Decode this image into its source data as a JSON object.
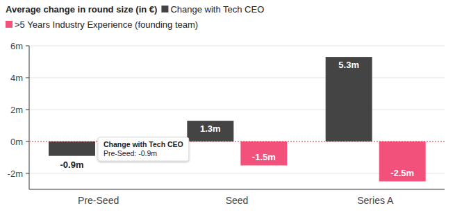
{
  "chart_data": {
    "type": "bar",
    "title": "Average change in round size (in €)",
    "categories": [
      "Pre-Seed",
      "Seed",
      "Series A"
    ],
    "series": [
      {
        "name": "Change with Tech CEO",
        "color": "#444444",
        "values": [
          -0.9,
          1.3,
          5.3
        ],
        "value_labels": [
          "-0.9m",
          "1.3m",
          "5.3m"
        ]
      },
      {
        "name": ">5 Years Industry Experience (founding team)",
        "color": "#f2517c",
        "values": [
          null,
          -1.5,
          -2.5
        ],
        "value_labels": [
          null,
          "-1.5m",
          "-2.5m"
        ]
      }
    ],
    "ylim": [
      -3,
      6
    ],
    "yticks": [
      {
        "value": -2,
        "label": "-2m"
      },
      {
        "value": 0,
        "label": "0m"
      },
      {
        "value": 2,
        "label": "2m"
      },
      {
        "value": 4,
        "label": "4m"
      },
      {
        "value": 6,
        "label": "6m"
      }
    ],
    "grid": true,
    "data_labels": true,
    "legend": "top",
    "annotations": [
      {
        "text": "Change with Tech CEO",
        "detail": "Pre-Seed: -0.9m"
      }
    ]
  }
}
